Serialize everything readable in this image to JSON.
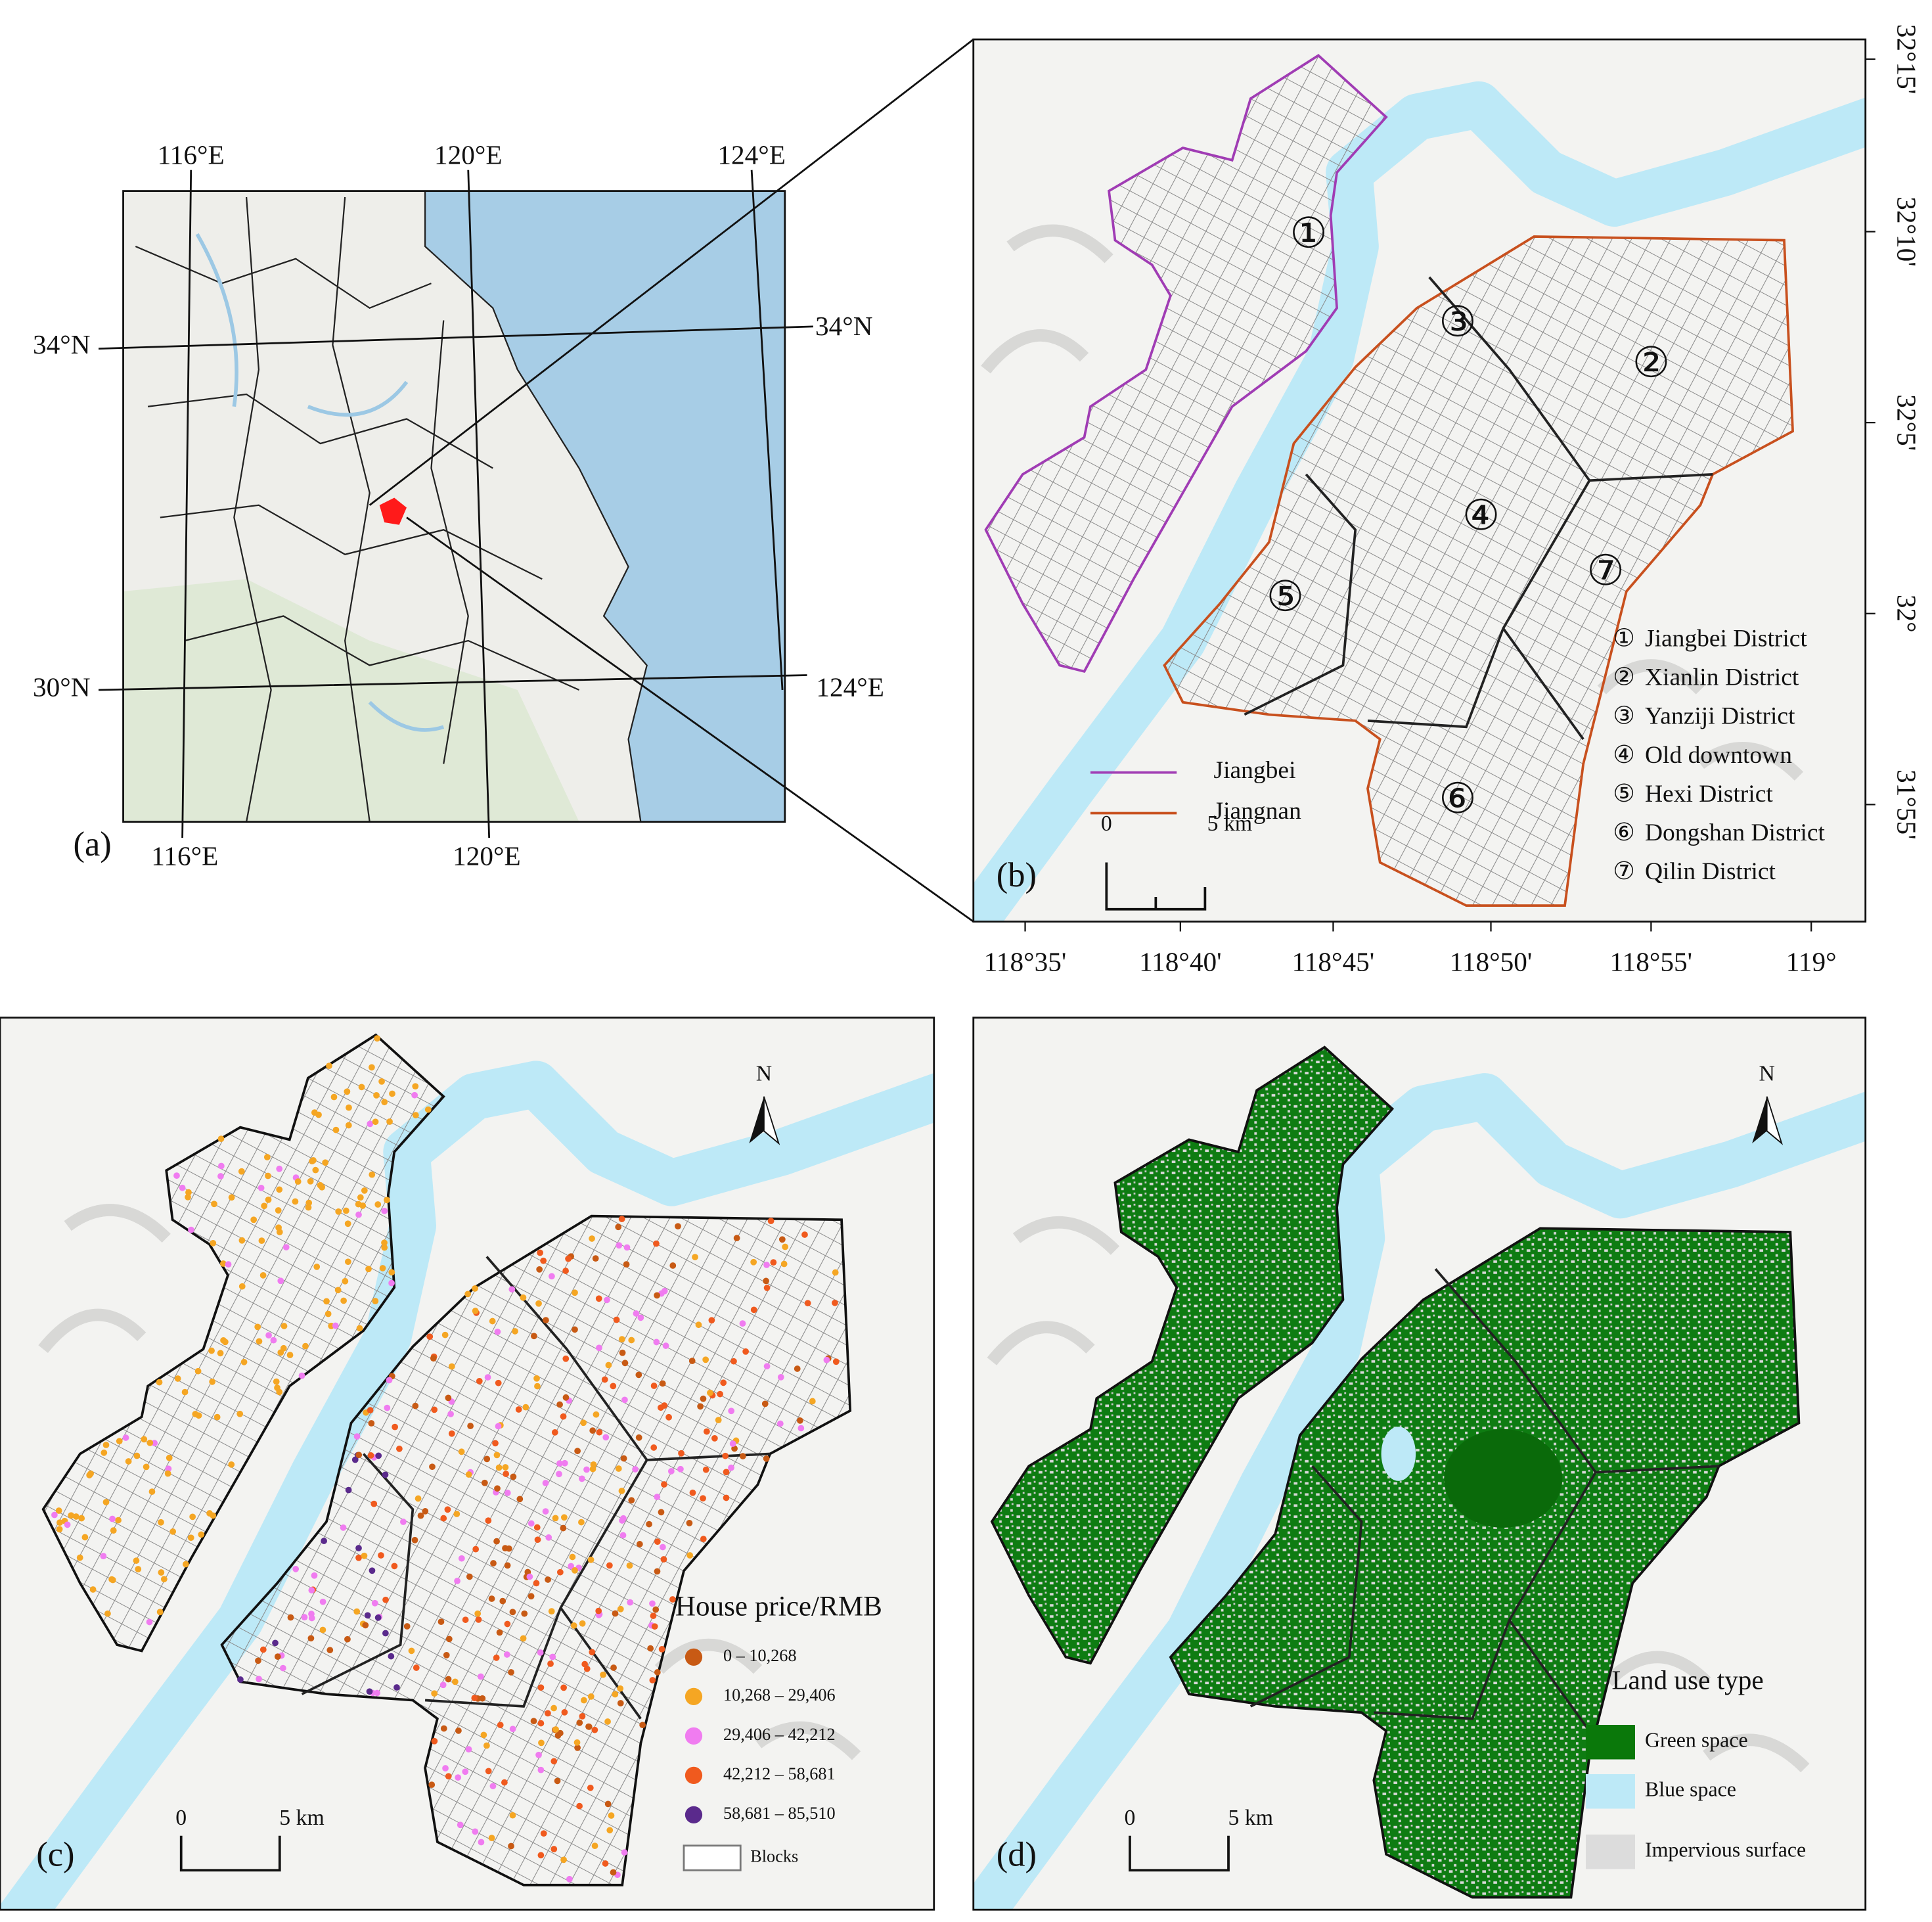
{
  "panel_a": {
    "label": "(a)",
    "top_ticks": [
      "116°E",
      "120°E",
      "124°E"
    ],
    "bottom_ticks": [
      "116°E",
      "120°E"
    ],
    "left_ticks": [
      "34°N",
      "30°N"
    ],
    "right_ticks": [
      "34°N",
      "124°E"
    ]
  },
  "panel_b": {
    "label": "(b)",
    "lat_ticks": [
      "32°15'",
      "32°10'",
      "32°5'",
      "32°",
      "31°55'"
    ],
    "lon_ticks": [
      "118°35'",
      "118°40'",
      "118°45'",
      "118°50'",
      "118°55'",
      "119°"
    ],
    "regions": [
      {
        "name": "Jiangbei",
        "color": "#a03cb4"
      },
      {
        "name": "Jiangnan",
        "color": "#c8501e"
      }
    ],
    "districts": [
      {
        "number": "①",
        "name": "Jiangbei District"
      },
      {
        "number": "②",
        "name": "Xianlin District"
      },
      {
        "number": "③",
        "name": "Yanziji District"
      },
      {
        "number": "④",
        "name": "Old downtown"
      },
      {
        "number": "⑤",
        "name": "Hexi District"
      },
      {
        "number": "⑥",
        "name": "Dongshan District"
      },
      {
        "number": "⑦",
        "name": "Qilin District"
      }
    ],
    "scale": [
      "0",
      "5 km"
    ]
  },
  "panel_c": {
    "label": "(c)",
    "north": "N",
    "legend_title": "House price/RMB",
    "classes": [
      {
        "label": "0 – 10,268",
        "color": "#c85a14"
      },
      {
        "label": "10,268 – 29,406",
        "color": "#f5a623"
      },
      {
        "label": "29,406 – 42,212",
        "color": "#f07cf0"
      },
      {
        "label": "42,212 – 58,681",
        "color": "#f05a1e"
      },
      {
        "label": "58,681 – 85,510",
        "color": "#5a2a8c"
      }
    ],
    "blocks": "Blocks",
    "scale": [
      "0",
      "5 km"
    ]
  },
  "panel_d": {
    "label": "(d)",
    "north": "N",
    "legend_title": "Land use type",
    "classes": [
      {
        "label": "Green space",
        "color": "#0a780a"
      },
      {
        "label": "Blue space",
        "color": "#bde9f7"
      },
      {
        "label": "Impervious surface",
        "color": "#dcdcdc"
      }
    ],
    "scale": [
      "0",
      "5 km"
    ]
  }
}
